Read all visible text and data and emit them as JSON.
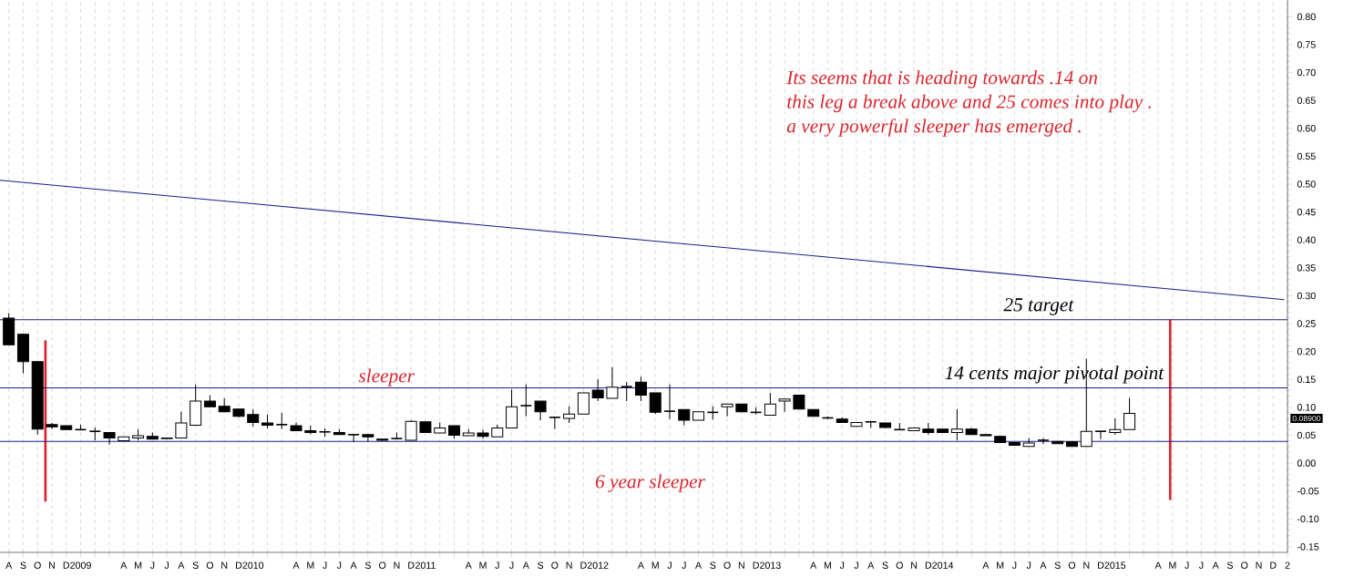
{
  "chart_data": {
    "type": "candlestick",
    "x": [
      "2008-08",
      "2008-09",
      "2008-10",
      "2008-11",
      "2008-12",
      "2009-01",
      "2009-02",
      "2009-03",
      "2009-04",
      "2009-05",
      "2009-06",
      "2009-07",
      "2009-08",
      "2009-09",
      "2009-10",
      "2009-11",
      "2009-12",
      "2010-01",
      "2010-02",
      "2010-03",
      "2010-04",
      "2010-05",
      "2010-06",
      "2010-07",
      "2010-08",
      "2010-09",
      "2010-10",
      "2010-11",
      "2010-12",
      "2011-01",
      "2011-02",
      "2011-03",
      "2011-04",
      "2011-05",
      "2011-06",
      "2011-07",
      "2011-08",
      "2011-09",
      "2011-10",
      "2011-11",
      "2011-12",
      "2012-01",
      "2012-02",
      "2012-03",
      "2012-04",
      "2012-05",
      "2012-06",
      "2012-07",
      "2012-08",
      "2012-09",
      "2012-10",
      "2012-11",
      "2012-12",
      "2013-01",
      "2013-02",
      "2013-03",
      "2013-04",
      "2013-05",
      "2013-06",
      "2013-07",
      "2013-08",
      "2013-09",
      "2013-10",
      "2013-11",
      "2013-12",
      "2014-01",
      "2014-02",
      "2014-03",
      "2014-04",
      "2014-05",
      "2014-06",
      "2014-07",
      "2014-08",
      "2014-09",
      "2014-10",
      "2014-11",
      "2014-12",
      "2015-01",
      "2015-02"
    ],
    "ohlc": [
      [
        0.26,
        0.269,
        0.212,
        0.212
      ],
      [
        0.231,
        0.231,
        0.161,
        0.182
      ],
      [
        0.182,
        0.182,
        0.051,
        0.061
      ],
      [
        0.069,
        0.072,
        0.061,
        0.065
      ],
      [
        0.067,
        0.067,
        0.06,
        0.06
      ],
      [
        0.06,
        0.069,
        0.06,
        0.06
      ],
      [
        0.057,
        0.064,
        0.041,
        0.057
      ],
      [
        0.055,
        0.055,
        0.033,
        0.045
      ],
      [
        0.04,
        0.047,
        0.04,
        0.047
      ],
      [
        0.045,
        0.061,
        0.041,
        0.049
      ],
      [
        0.048,
        0.055,
        0.043,
        0.043
      ],
      [
        0.045,
        0.045,
        0.043,
        0.044
      ],
      [
        0.045,
        0.092,
        0.045,
        0.072
      ],
      [
        0.068,
        0.141,
        0.068,
        0.111
      ],
      [
        0.111,
        0.122,
        0.101,
        0.101
      ],
      [
        0.102,
        0.116,
        0.092,
        0.092
      ],
      [
        0.097,
        0.097,
        0.082,
        0.084
      ],
      [
        0.087,
        0.097,
        0.066,
        0.073
      ],
      [
        0.072,
        0.087,
        0.062,
        0.068
      ],
      [
        0.069,
        0.09,
        0.061,
        0.069
      ],
      [
        0.067,
        0.073,
        0.058,
        0.058
      ],
      [
        0.058,
        0.067,
        0.052,
        0.055
      ],
      [
        0.056,
        0.062,
        0.047,
        0.056
      ],
      [
        0.055,
        0.061,
        0.051,
        0.051
      ],
      [
        0.051,
        0.051,
        0.038,
        0.051
      ],
      [
        0.051,
        0.051,
        0.039,
        0.047
      ],
      [
        0.043,
        0.043,
        0.04,
        0.041
      ],
      [
        0.044,
        0.055,
        0.043,
        0.044
      ],
      [
        0.041,
        0.077,
        0.041,
        0.075
      ],
      [
        0.074,
        0.074,
        0.055,
        0.055
      ],
      [
        0.054,
        0.073,
        0.054,
        0.063
      ],
      [
        0.067,
        0.067,
        0.044,
        0.05
      ],
      [
        0.049,
        0.061,
        0.049,
        0.054
      ],
      [
        0.054,
        0.06,
        0.044,
        0.048
      ],
      [
        0.047,
        0.069,
        0.047,
        0.063
      ],
      [
        0.063,
        0.132,
        0.063,
        0.101
      ],
      [
        0.103,
        0.141,
        0.084,
        0.103
      ],
      [
        0.111,
        0.111,
        0.077,
        0.092
      ],
      [
        0.082,
        0.082,
        0.061,
        0.082
      ],
      [
        0.08,
        0.102,
        0.072,
        0.088
      ],
      [
        0.088,
        0.126,
        0.088,
        0.126
      ],
      [
        0.131,
        0.151,
        0.111,
        0.117
      ],
      [
        0.116,
        0.172,
        0.116,
        0.136
      ],
      [
        0.137,
        0.145,
        0.111,
        0.137
      ],
      [
        0.145,
        0.155,
        0.111,
        0.122
      ],
      [
        0.126,
        0.126,
        0.088,
        0.091
      ],
      [
        0.093,
        0.141,
        0.079,
        0.093
      ],
      [
        0.096,
        0.096,
        0.068,
        0.077
      ],
      [
        0.077,
        0.092,
        0.077,
        0.092
      ],
      [
        0.091,
        0.102,
        0.078,
        0.091
      ],
      [
        0.101,
        0.106,
        0.084,
        0.106
      ],
      [
        0.106,
        0.106,
        0.091,
        0.092
      ],
      [
        0.091,
        0.1,
        0.087,
        0.091
      ],
      [
        0.086,
        0.126,
        0.086,
        0.106
      ],
      [
        0.111,
        0.115,
        0.092,
        0.115
      ],
      [
        0.122,
        0.122,
        0.097,
        0.097
      ],
      [
        0.096,
        0.096,
        0.084,
        0.084
      ],
      [
        0.081,
        0.084,
        0.079,
        0.081
      ],
      [
        0.079,
        0.082,
        0.073,
        0.073
      ],
      [
        0.066,
        0.073,
        0.066,
        0.073
      ],
      [
        0.074,
        0.074,
        0.063,
        0.074
      ],
      [
        0.072,
        0.072,
        0.062,
        0.064
      ],
      [
        0.06,
        0.072,
        0.06,
        0.06
      ],
      [
        0.058,
        0.063,
        0.058,
        0.063
      ],
      [
        0.061,
        0.072,
        0.051,
        0.055
      ],
      [
        0.061,
        0.061,
        0.055,
        0.055
      ],
      [
        0.055,
        0.097,
        0.041,
        0.061
      ],
      [
        0.061,
        0.063,
        0.051,
        0.051
      ],
      [
        0.051,
        0.051,
        0.049,
        0.049
      ],
      [
        0.048,
        0.048,
        0.037,
        0.037
      ],
      [
        0.037,
        0.037,
        0.032,
        0.032
      ],
      [
        0.03,
        0.045,
        0.03,
        0.036
      ],
      [
        0.041,
        0.045,
        0.034,
        0.041
      ],
      [
        0.039,
        0.039,
        0.035,
        0.035
      ],
      [
        0.038,
        0.038,
        0.03,
        0.03
      ],
      [
        0.03,
        0.187,
        0.03,
        0.057
      ],
      [
        0.057,
        0.057,
        0.043,
        0.057
      ],
      [
        0.055,
        0.08,
        0.051,
        0.06
      ],
      [
        0.06,
        0.117,
        0.06,
        0.089
      ]
    ],
    "series": [
      {
        "type": "line",
        "color": "#1c1c8f",
        "x": [
          "2008-07-13",
          "2015-12-25"
        ],
        "values": [
          0.507,
          0.293
        ]
      },
      {
        "type": "line",
        "color": "#d9262e",
        "x": [
          "2008-10-18",
          "2008-10-18"
        ],
        "values": [
          0.22,
          -0.069
        ]
      },
      {
        "type": "line",
        "color": "#d9262e",
        "x": [
          "2015-04-26",
          "2015-04-26"
        ],
        "values": [
          0.257,
          -0.066
        ]
      }
    ],
    "ref_lines": [
      {
        "axis": "y",
        "value": 0.257,
        "label": "25 target",
        "color": "#1c1c8f"
      },
      {
        "axis": "y",
        "value": 0.135,
        "label": "14 cents major pivotal  point",
        "color": "#1c1c8f"
      },
      {
        "axis": "y",
        "value": 0.039,
        "color": "#1c1c8f"
      }
    ],
    "annotations": [
      "Its seems that is heading towards .14 on",
      "this leg a break above and 25 comes into play .",
      "a very powerful sleeper has emerged .",
      {
        "text": "sleeper",
        "x": "2010-10-10",
        "y": 0.135
      },
      {
        "text": "6 year sleeper",
        "x": "2012-04-20",
        "y": 0.039
      },
      "0.08900"
    ],
    "xlim": [
      "2008-07-13",
      "2016-01"
    ],
    "ylim": [
      -0.16,
      0.83
    ],
    "grid": "x",
    "yticks": [
      {
        "value": -0.15,
        "label": "-0.15"
      },
      {
        "value": -0.1,
        "label": "-0.10"
      },
      {
        "value": -0.05,
        "label": "-0.05"
      },
      {
        "value": 0,
        "label": "0.00"
      },
      {
        "value": 0.05,
        "label": "0.05"
      },
      {
        "value": 0.1,
        "label": "0.10"
      },
      {
        "value": 0.15,
        "label": "0.15"
      },
      {
        "value": 0.2,
        "label": "0.20"
      },
      {
        "value": 0.25,
        "label": "0.25"
      },
      {
        "value": 0.3,
        "label": "0.30"
      },
      {
        "value": 0.35,
        "label": "0.35"
      },
      {
        "value": 0.4,
        "label": "0.40"
      },
      {
        "value": 0.45,
        "label": "0.45"
      },
      {
        "value": 0.5,
        "label": "0.50"
      },
      {
        "value": 0.55,
        "label": "0.55"
      },
      {
        "value": 0.6,
        "label": "0.60"
      },
      {
        "value": 0.65,
        "label": "0.65"
      },
      {
        "value": 0.7,
        "label": "0.70"
      },
      {
        "value": 0.75,
        "label": "0.75"
      },
      {
        "value": 0.8,
        "label": "0.80"
      }
    ],
    "xticks": [
      {
        "value": "2008-08",
        "label": "A"
      },
      {
        "value": "2008-09",
        "label": "S"
      },
      {
        "value": "2008-10",
        "label": "O"
      },
      {
        "value": "2008-11",
        "label": "N"
      },
      {
        "value": "2008-12",
        "label": "D"
      },
      {
        "value": "2009-01",
        "label": "2009"
      },
      {
        "value": "2009-02",
        "label": null
      },
      {
        "value": "2009-03",
        "label": null
      },
      {
        "value": "2009-04",
        "label": "A"
      },
      {
        "value": "2009-05",
        "label": "M"
      },
      {
        "value": "2009-06",
        "label": "J"
      },
      {
        "value": "2009-07",
        "label": "J"
      },
      {
        "value": "2009-08",
        "label": "A"
      },
      {
        "value": "2009-09",
        "label": "S"
      },
      {
        "value": "2009-10",
        "label": "O"
      },
      {
        "value": "2009-11",
        "label": "N"
      },
      {
        "value": "2009-12",
        "label": "D"
      },
      {
        "value": "2010-01",
        "label": "2010"
      },
      {
        "value": "2010-02",
        "label": null
      },
      {
        "value": "2010-03",
        "label": null
      },
      {
        "value": "2010-04",
        "label": "A"
      },
      {
        "value": "2010-05",
        "label": "M"
      },
      {
        "value": "2010-06",
        "label": "J"
      },
      {
        "value": "2010-07",
        "label": "J"
      },
      {
        "value": "2010-08",
        "label": "A"
      },
      {
        "value": "2010-09",
        "label": "S"
      },
      {
        "value": "2010-10",
        "label": "O"
      },
      {
        "value": "2010-11",
        "label": "N"
      },
      {
        "value": "2010-12",
        "label": "D"
      },
      {
        "value": "2011-01",
        "label": "2011"
      },
      {
        "value": "2011-02",
        "label": null
      },
      {
        "value": "2011-03",
        "label": null
      },
      {
        "value": "2011-04",
        "label": "A"
      },
      {
        "value": "2011-05",
        "label": "M"
      },
      {
        "value": "2011-06",
        "label": "J"
      },
      {
        "value": "2011-07",
        "label": "J"
      },
      {
        "value": "2011-08",
        "label": "A"
      },
      {
        "value": "2011-09",
        "label": "S"
      },
      {
        "value": "2011-10",
        "label": "O"
      },
      {
        "value": "2011-11",
        "label": "N"
      },
      {
        "value": "2011-12",
        "label": "D"
      },
      {
        "value": "2012-01",
        "label": "2012"
      },
      {
        "value": "2012-02",
        "label": null
      },
      {
        "value": "2012-03",
        "label": null
      },
      {
        "value": "2012-04",
        "label": "A"
      },
      {
        "value": "2012-05",
        "label": "M"
      },
      {
        "value": "2012-06",
        "label": "J"
      },
      {
        "value": "2012-07",
        "label": "J"
      },
      {
        "value": "2012-08",
        "label": "A"
      },
      {
        "value": "2012-09",
        "label": "S"
      },
      {
        "value": "2012-10",
        "label": "O"
      },
      {
        "value": "2012-11",
        "label": "N"
      },
      {
        "value": "2012-12",
        "label": "D"
      },
      {
        "value": "2013-01",
        "label": "2013"
      },
      {
        "value": "2013-02",
        "label": null
      },
      {
        "value": "2013-03",
        "label": null
      },
      {
        "value": "2013-04",
        "label": "A"
      },
      {
        "value": "2013-05",
        "label": "M"
      },
      {
        "value": "2013-06",
        "label": "J"
      },
      {
        "value": "2013-07",
        "label": "J"
      },
      {
        "value": "2013-08",
        "label": "A"
      },
      {
        "value": "2013-09",
        "label": "S"
      },
      {
        "value": "2013-10",
        "label": "O"
      },
      {
        "value": "2013-11",
        "label": "N"
      },
      {
        "value": "2013-12",
        "label": "D"
      },
      {
        "value": "2014-01",
        "label": "2014"
      },
      {
        "value": "2014-02",
        "label": null
      },
      {
        "value": "2014-03",
        "label": null
      },
      {
        "value": "2014-04",
        "label": "A"
      },
      {
        "value": "2014-05",
        "label": "M"
      },
      {
        "value": "2014-06",
        "label": "J"
      },
      {
        "value": "2014-07",
        "label": "J"
      },
      {
        "value": "2014-08",
        "label": "A"
      },
      {
        "value": "2014-09",
        "label": "S"
      },
      {
        "value": "2014-10",
        "label": "O"
      },
      {
        "value": "2014-11",
        "label": "N"
      },
      {
        "value": "2014-12",
        "label": "D"
      },
      {
        "value": "2015-01",
        "label": "2015"
      },
      {
        "value": "2015-02",
        "label": null
      },
      {
        "value": "2015-03",
        "label": null
      },
      {
        "value": "2015-04",
        "label": "A"
      },
      {
        "value": "2015-05",
        "label": "M"
      },
      {
        "value": "2015-06",
        "label": "J"
      },
      {
        "value": "2015-07",
        "label": "J"
      },
      {
        "value": "2015-08",
        "label": "A"
      },
      {
        "value": "2015-09",
        "label": "S"
      },
      {
        "value": "2015-10",
        "label": "O"
      },
      {
        "value": "2015-11",
        "label": "N"
      },
      {
        "value": "2015-12",
        "label": "D"
      },
      {
        "value": "2016-01",
        "label": "2"
      }
    ]
  }
}
